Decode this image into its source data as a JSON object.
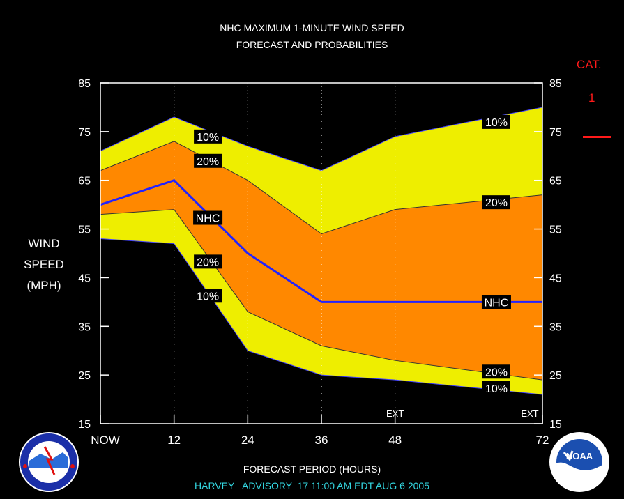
{
  "title_line1": "NHC MAXIMUM 1-MINUTE WIND SPEED",
  "title_line2": "FORECAST AND PROBABILITIES",
  "ylabel_lines": [
    "WIND",
    "SPEED",
    "(MPH)"
  ],
  "xlabel": "FORECAST PERIOD (HOURS)",
  "advisory": "HARVEY   ADVISORY  17 11:00 AM EDT AUG 6 2005",
  "category": {
    "label": "CAT.",
    "value": "1",
    "color": "#ff1a1a"
  },
  "colors": {
    "band_10": "#eeee00",
    "band_20": "#ff8800",
    "nhc_line": "#2222ff",
    "background": "#000000",
    "text": "#ffffff"
  },
  "chart_data": {
    "type": "area",
    "x": [
      0,
      12,
      24,
      36,
      48,
      72
    ],
    "x_tick_labels": [
      "NOW",
      "12",
      "24",
      "36",
      "48",
      "72"
    ],
    "ext_labels": [
      {
        "x": 48,
        "text": "EXT"
      },
      {
        "x": 72,
        "text": "EXT"
      }
    ],
    "xlim": [
      0,
      72
    ],
    "ylim": [
      15,
      85
    ],
    "y_ticks": [
      15,
      25,
      35,
      45,
      55,
      65,
      75,
      85
    ],
    "grid": "vertical dotted at forecast hours",
    "series": [
      {
        "name": "10%",
        "values": [
          71,
          78,
          72,
          67,
          74,
          80
        ]
      },
      {
        "name": "20%",
        "values": [
          67,
          73,
          65,
          54,
          59,
          62
        ]
      },
      {
        "name": "NHC",
        "values": [
          60,
          65,
          50,
          40,
          40,
          40
        ]
      },
      {
        "name": "20%",
        "values": [
          58,
          59,
          38,
          31,
          28,
          24
        ]
      },
      {
        "name": "10%",
        "values": [
          53,
          52,
          30,
          25,
          24,
          21
        ]
      }
    ],
    "annotations": [
      {
        "text": "10%",
        "x": 17.5,
        "y": 74
      },
      {
        "text": "20%",
        "x": 17.5,
        "y": 69
      },
      {
        "text": "NHC",
        "x": 17.5,
        "y": 57.3
      },
      {
        "text": "20%",
        "x": 17.5,
        "y": 48.3
      },
      {
        "text": "10%",
        "x": 17.5,
        "y": 41.3
      },
      {
        "text": "10%",
        "x": 64.5,
        "y": 77
      },
      {
        "text": "20%",
        "x": 64.5,
        "y": 60.5
      },
      {
        "text": "NHC",
        "x": 64.5,
        "y": 40
      },
      {
        "text": "20%",
        "x": 64.5,
        "y": 25.7
      },
      {
        "text": "10%",
        "x": 64.5,
        "y": 22.3
      }
    ]
  }
}
